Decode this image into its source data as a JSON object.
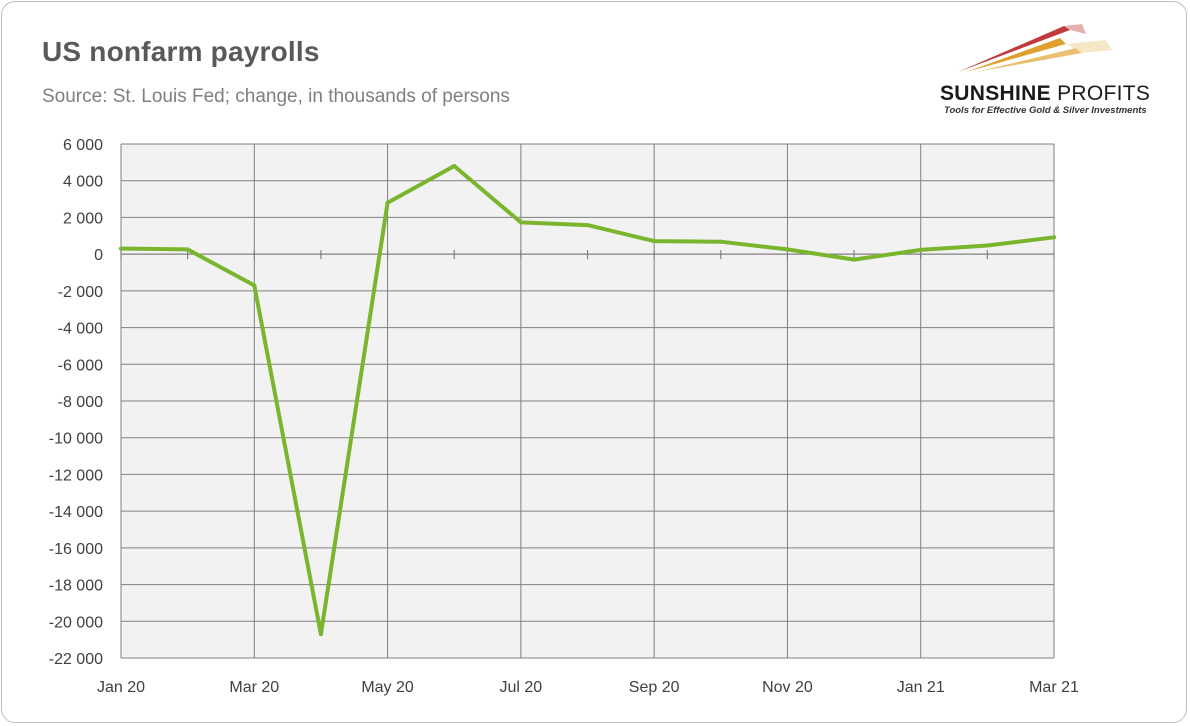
{
  "header": {
    "title": "US nonfarm payrolls",
    "subtitle": "Source: St. Louis Fed; change, in thousands of persons"
  },
  "logo": {
    "name_bold": "SUNSHINE",
    "name_light": "PROFITS",
    "tagline": "Tools for Effective Gold & Silver Investments"
  },
  "colors": {
    "line": "#7ab52e",
    "plot_background": "#f2f2f2",
    "grid": "#808080",
    "logo_red": "#c0393b",
    "logo_gold": "#e0a030"
  },
  "chart_data": {
    "type": "line",
    "x": [
      "Jan 20",
      "Feb 20",
      "Mar 20",
      "Apr 20",
      "May 20",
      "Jun 20",
      "Jul 20",
      "Aug 20",
      "Sep 20",
      "Oct 20",
      "Nov 20",
      "Dec 20",
      "Jan 21",
      "Feb 21",
      "Mar 21"
    ],
    "x_tick_labels": [
      "Jan 20",
      "Mar 20",
      "May 20",
      "Jul 20",
      "Sep 20",
      "Nov 20",
      "Jan 21",
      "Mar 21"
    ],
    "series": [
      {
        "values": [
          300,
          260,
          -1700,
          -20700,
          2800,
          4800,
          1730,
          1580,
          710,
          680,
          260,
          -300,
          230,
          470,
          920
        ]
      }
    ],
    "y_ticks": [
      6000,
      4000,
      2000,
      0,
      -2000,
      -4000,
      -6000,
      -8000,
      -10000,
      -12000,
      -14000,
      -16000,
      -18000,
      -20000,
      -22000
    ],
    "y_tick_labels": [
      "6 000",
      "4 000",
      "2 000",
      "0",
      "-2 000",
      "-4 000",
      "-6 000",
      "-8 000",
      "-10 000",
      "-12 000",
      "-14 000",
      "-16 000",
      "-18 000",
      "-20 000",
      "-22 000"
    ],
    "ylim": [
      -22000,
      6000
    ],
    "grid": true,
    "legend": "none"
  }
}
